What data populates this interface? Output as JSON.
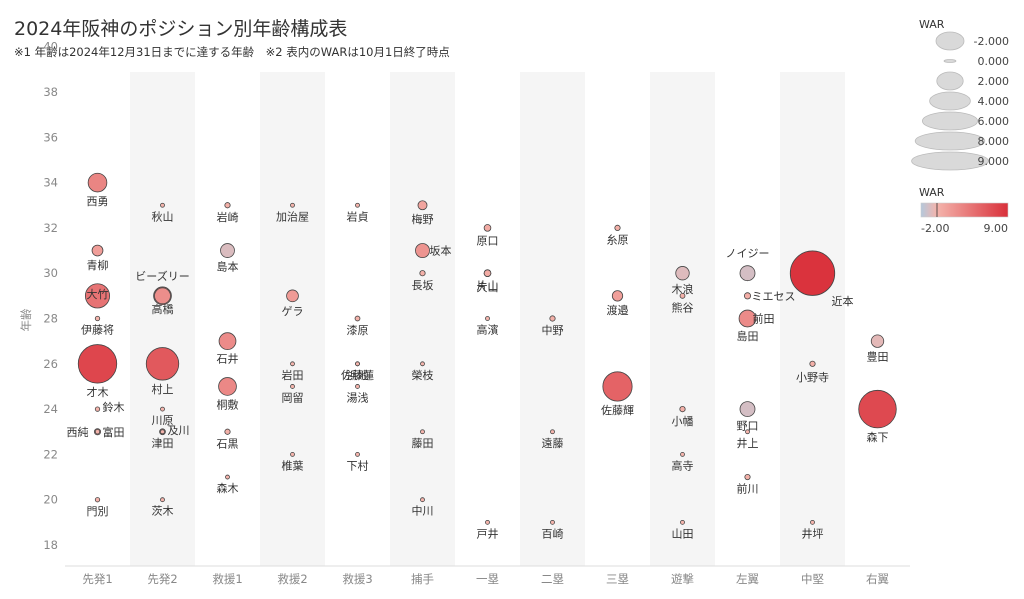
{
  "title": "2024年阪神のポジション別年齢構成表",
  "subtitle": "※1 年齢は2024年12月31日までに達する年齢　※2 表内のWARは10月1日終了時点",
  "chart_data": {
    "type": "scatter",
    "ylabel": "年齢",
    "ylim": [
      17,
      41
    ],
    "yticks": [
      18,
      20,
      22,
      24,
      26,
      28,
      30,
      32,
      34,
      36,
      38,
      40
    ],
    "categories": [
      "先発1",
      "先発2",
      "救援1",
      "救援2",
      "救援3",
      "捕手",
      "一塁",
      "二塁",
      "三塁",
      "遊撃",
      "左翼",
      "中堅",
      "右翼"
    ],
    "size_legend": {
      "title": "WAR",
      "values": [
        "-2.000",
        "0.000",
        "2.000",
        "4.000",
        "6.000",
        "8.000",
        "9.000"
      ]
    },
    "color_legend": {
      "title": "WAR",
      "min_label": "-2.00",
      "max_label": "9.00",
      "min": -2,
      "max": 9,
      "color_low": "#b4c8dc",
      "color_mid": "#f4b4ac",
      "color_high": "#d9303a"
    },
    "points": [
      {
        "name": "西勇",
        "pos": "先発1",
        "age": 34,
        "war": 3.2
      },
      {
        "name": "青柳",
        "pos": "先発1",
        "age": 31,
        "war": 1.5
      },
      {
        "name": "大竹",
        "pos": "先発1",
        "age": 29,
        "war": 4.4
      },
      {
        "name": "伊藤将",
        "pos": "先発1",
        "age": 28,
        "war": 0.1
      },
      {
        "name": "才木",
        "pos": "先発1",
        "age": 26,
        "war": 7.5
      },
      {
        "name": "鈴木",
        "pos": "先発1",
        "age": 24,
        "war": 0.1
      },
      {
        "name": "西純",
        "pos": "先発1",
        "age": 23,
        "war": 0.5
      },
      {
        "name": "富田",
        "pos": "先発1",
        "age": 23,
        "war": 0.1
      },
      {
        "name": "門別",
        "pos": "先発1",
        "age": 20,
        "war": 0.1
      },
      {
        "name": "秋山",
        "pos": "先発2",
        "age": 33,
        "war": 0.0
      },
      {
        "name": "ビーズリー",
        "pos": "先発2",
        "age": 29,
        "war": 3.0
      },
      {
        "name": "高橋",
        "pos": "先発2",
        "age": 29,
        "war": 2.6
      },
      {
        "name": "村上",
        "pos": "先発2",
        "age": 26,
        "war": 6.2
      },
      {
        "name": "川原",
        "pos": "先発2",
        "age": 24,
        "war": 0.0
      },
      {
        "name": "及川",
        "pos": "先発2",
        "age": 23,
        "war": 0.4
      },
      {
        "name": "津田",
        "pos": "先発2",
        "age": 23,
        "war": 0.0
      },
      {
        "name": "茨木",
        "pos": "先発2",
        "age": 20,
        "war": 0.0
      },
      {
        "name": "岩崎",
        "pos": "救援1",
        "age": 33,
        "war": 0.3
      },
      {
        "name": "島本",
        "pos": "救援1",
        "age": 31,
        "war": -0.8
      },
      {
        "name": "石井",
        "pos": "救援1",
        "age": 27,
        "war": 2.8
      },
      {
        "name": "桐敷",
        "pos": "救援1",
        "age": 25,
        "war": 3.0
      },
      {
        "name": "石黒",
        "pos": "救援1",
        "age": 23,
        "war": 0.3
      },
      {
        "name": "森木",
        "pos": "救援1",
        "age": 21,
        "war": 0.0
      },
      {
        "name": "加治屋",
        "pos": "救援2",
        "age": 33,
        "war": 0.0
      },
      {
        "name": "ゲラ",
        "pos": "救援2",
        "age": 29,
        "war": 1.7
      },
      {
        "name": "岩田",
        "pos": "救援2",
        "age": 26,
        "war": 0.0
      },
      {
        "name": "岡留",
        "pos": "救援2",
        "age": 25,
        "war": 0.0
      },
      {
        "name": "椎葉",
        "pos": "救援2",
        "age": 22,
        "war": 0.0
      },
      {
        "name": "岩貞",
        "pos": "救援3",
        "age": 33,
        "war": 0.0
      },
      {
        "name": "漆原",
        "pos": "救援3",
        "age": 28,
        "war": 0.2
      },
      {
        "name": "佐藤蓮",
        "pos": "救援3",
        "age": 26,
        "war": 0.0
      },
      {
        "name": "浜地",
        "pos": "救援3",
        "age": 26,
        "war": 0.0
      },
      {
        "name": "湯浅",
        "pos": "救援3",
        "age": 25,
        "war": 0.0
      },
      {
        "name": "下村",
        "pos": "救援3",
        "age": 22,
        "war": 0.0
      },
      {
        "name": "梅野",
        "pos": "捕手",
        "age": 33,
        "war": 1.1
      },
      {
        "name": "坂本",
        "pos": "捕手",
        "age": 31,
        "war": 2.2
      },
      {
        "name": "長坂",
        "pos": "捕手",
        "age": 30,
        "war": 0.3
      },
      {
        "name": "榮枝",
        "pos": "捕手",
        "age": 26,
        "war": 0.0
      },
      {
        "name": "藤田",
        "pos": "捕手",
        "age": 23,
        "war": 0.0
      },
      {
        "name": "中川",
        "pos": "捕手",
        "age": 20,
        "war": 0.0
      },
      {
        "name": "原口",
        "pos": "一塁",
        "age": 32,
        "war": 0.6
      },
      {
        "name": "大山",
        "pos": "一塁",
        "age": 30,
        "war": 0.6
      },
      {
        "name": "片山",
        "pos": "一塁",
        "age": 30,
        "war": 0.6
      },
      {
        "name": "高濱",
        "pos": "一塁",
        "age": 28,
        "war": 0.0
      },
      {
        "name": "戸井",
        "pos": "一塁",
        "age": 19,
        "war": 0.0
      },
      {
        "name": "中野",
        "pos": "二塁",
        "age": 28,
        "war": 0.3
      },
      {
        "name": "遠藤",
        "pos": "二塁",
        "age": 23,
        "war": 0.0
      },
      {
        "name": "百崎",
        "pos": "二塁",
        "age": 19,
        "war": 0.0
      },
      {
        "name": "糸原",
        "pos": "三塁",
        "age": 32,
        "war": 0.3
      },
      {
        "name": "渡邉",
        "pos": "三塁",
        "age": 29,
        "war": 1.4
      },
      {
        "name": "佐藤輝",
        "pos": "三塁",
        "age": 25,
        "war": 5.5
      },
      {
        "name": "木浪",
        "pos": "遊撃",
        "age": 30,
        "war": -0.7
      },
      {
        "name": "熊谷",
        "pos": "遊撃",
        "age": 29,
        "war": 0.2
      },
      {
        "name": "小幡",
        "pos": "遊撃",
        "age": 24,
        "war": 0.3
      },
      {
        "name": "高寺",
        "pos": "遊撃",
        "age": 22,
        "war": 0.0
      },
      {
        "name": "山田",
        "pos": "遊撃",
        "age": 19,
        "war": 0.0
      },
      {
        "name": "ノイジー",
        "pos": "左翼",
        "age": 30,
        "war": -1.0
      },
      {
        "name": "ミエセス",
        "pos": "左翼",
        "age": 29,
        "war": 0.5
      },
      {
        "name": "前田",
        "pos": "左翼",
        "age": 28,
        "war": 0.0
      },
      {
        "name": "島田",
        "pos": "左翼",
        "age": 28,
        "war": 2.8
      },
      {
        "name": "野口",
        "pos": "左翼",
        "age": 24,
        "war": -1.0
      },
      {
        "name": "井上",
        "pos": "左翼",
        "age": 23,
        "war": 0.0
      },
      {
        "name": "前川",
        "pos": "左翼",
        "age": 21,
        "war": 0.3
      },
      {
        "name": "近本",
        "pos": "中堅",
        "age": 30,
        "war": 8.8
      },
      {
        "name": "小野寺",
        "pos": "中堅",
        "age": 26,
        "war": 0.3
      },
      {
        "name": "井坪",
        "pos": "中堅",
        "age": 19,
        "war": 0.0
      },
      {
        "name": "豊田",
        "pos": "右翼",
        "age": 27,
        "war": -0.5
      },
      {
        "name": "森下",
        "pos": "右翼",
        "age": 24,
        "war": 7.3
      }
    ]
  }
}
